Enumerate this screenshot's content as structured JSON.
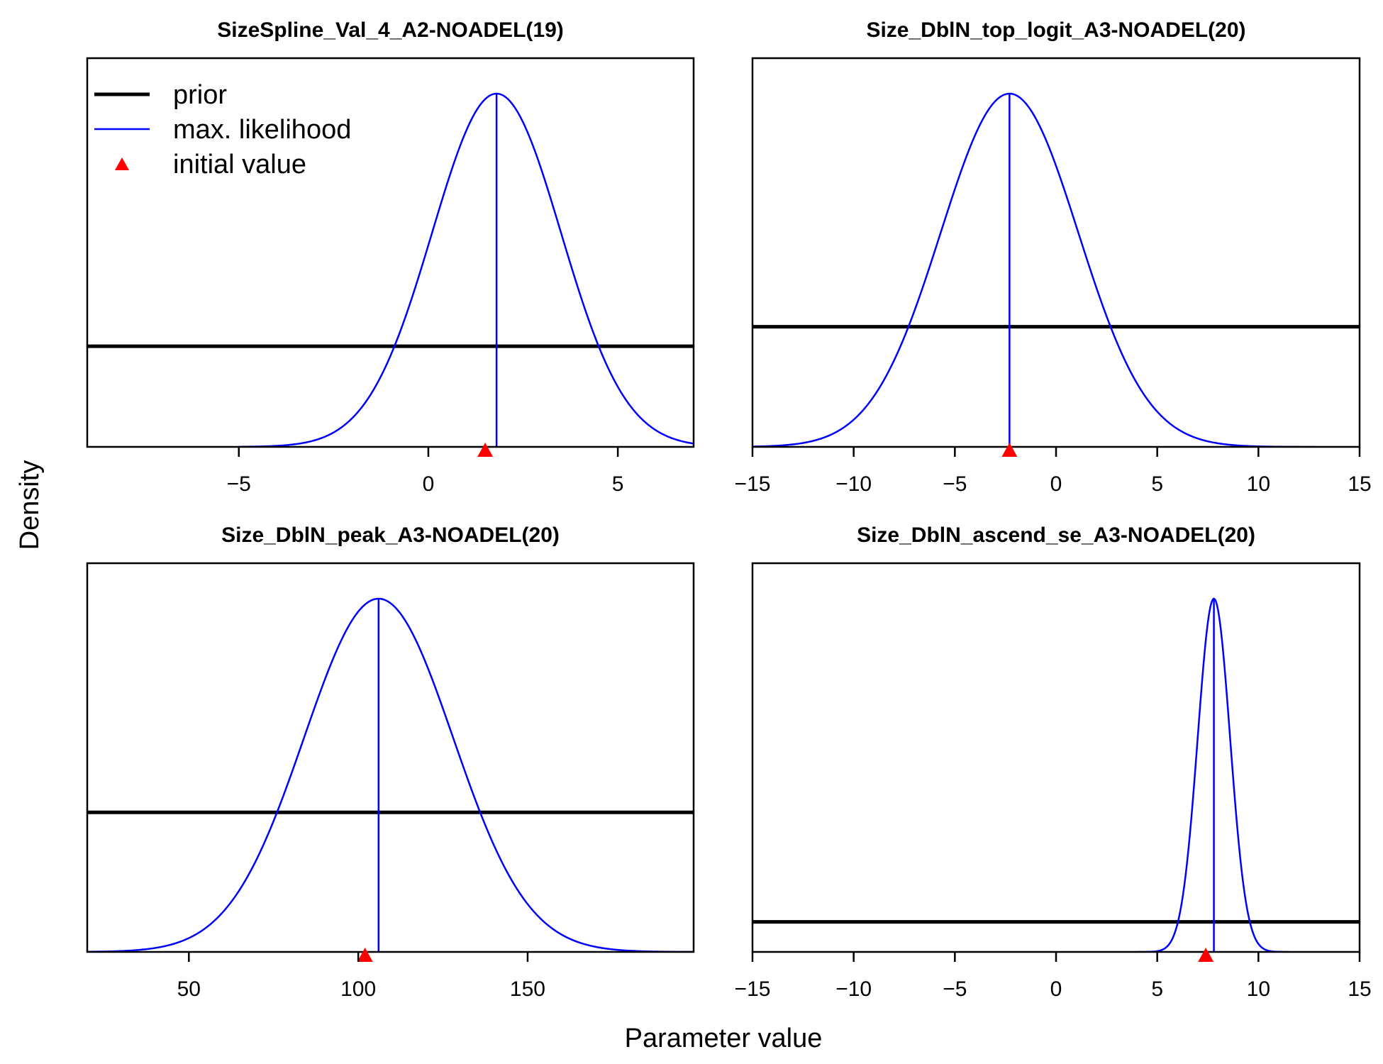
{
  "figure": {
    "ylabel": "Density",
    "xlabel": "Parameter value"
  },
  "legend": {
    "placement": "top-left of first panel",
    "items": [
      {
        "label": "prior",
        "style": "thick-line",
        "color": "#000000"
      },
      {
        "label": "max. likelihood",
        "style": "thin-line",
        "color": "#0000ff"
      },
      {
        "label": "initial value",
        "style": "triangle",
        "color": "#ff0000"
      }
    ]
  },
  "colors": {
    "prior": "#000000",
    "mle": "#0000ff",
    "initial": "#ff0000"
  },
  "chart_data": [
    {
      "type": "line",
      "title": "SizeSpline_Val_4_A2-NOADEL(19)",
      "xlim": [
        -9,
        7
      ],
      "x_ticks": [
        -5,
        0,
        5
      ],
      "mle": 1.8,
      "mle_sd": 1.7,
      "curve_range": [
        -5,
        7
      ],
      "prior_level": 0.285,
      "initial_value": 1.5
    },
    {
      "type": "line",
      "title": "Size_DblN_top_logit_A3-NOADEL(20)",
      "xlim": [
        -15,
        15
      ],
      "x_ticks": [
        -15,
        -10,
        -5,
        0,
        5,
        10,
        15
      ],
      "mle": -2.3,
      "mle_sd": 3.4,
      "curve_range": [
        -15,
        12.8
      ],
      "prior_level": 0.34,
      "initial_value": -2.3
    },
    {
      "type": "line",
      "title": "Size_DblN_peak_A3-NOADEL(20)",
      "xlim": [
        20,
        199
      ],
      "x_ticks": [
        50,
        100,
        150
      ],
      "mle": 106,
      "mle_sd": 22,
      "curve_range": [
        20,
        199
      ],
      "prior_level": 0.395,
      "initial_value": 102
    },
    {
      "type": "line",
      "title": "Size_DblN_ascend_se_A3-NOADEL(20)",
      "xlim": [
        -15,
        15
      ],
      "x_ticks": [
        -15,
        -10,
        -5,
        0,
        5,
        10,
        15
      ],
      "mle": 7.8,
      "mle_sd": 0.8,
      "curve_range": [
        4.0,
        11.5
      ],
      "prior_level": 0.085,
      "initial_value": 7.4
    }
  ]
}
